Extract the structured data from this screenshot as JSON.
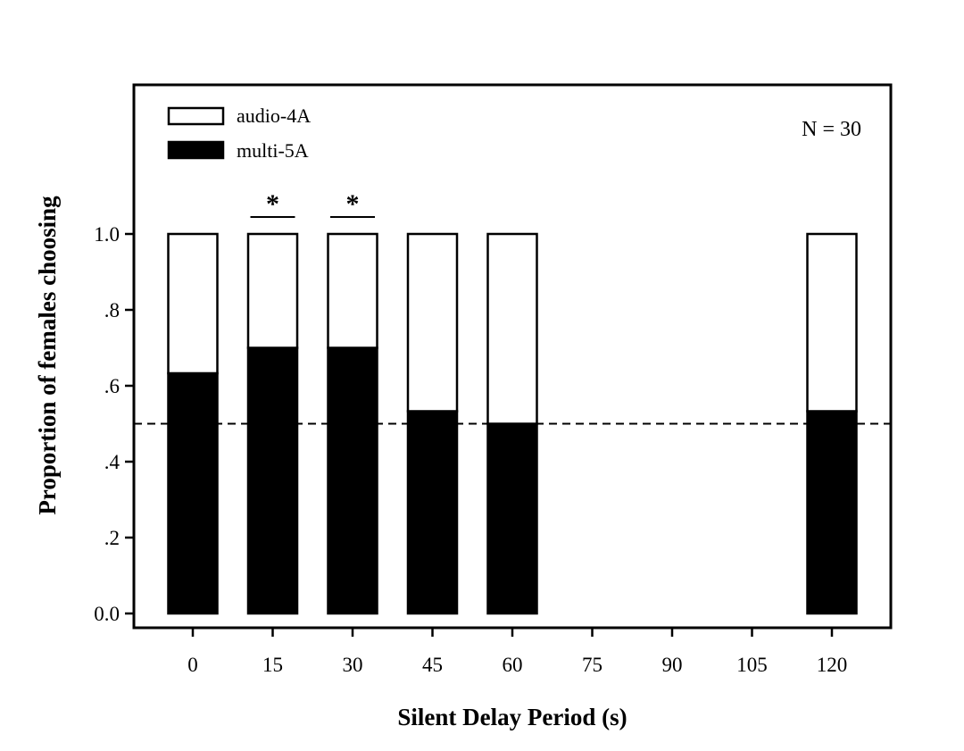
{
  "chart_data": {
    "type": "bar",
    "stacked": true,
    "title": "",
    "xlabel": "Silent Delay Period (s)",
    "ylabel": "Proportion of females choosing",
    "x_ticks": [
      "0",
      "15",
      "30",
      "45",
      "60",
      "75",
      "90",
      "105",
      "120"
    ],
    "y_ticks": [
      {
        "value": 0.0,
        "label": "0.0"
      },
      {
        "value": 0.2,
        "label": ".2"
      },
      {
        "value": 0.4,
        "label": ".4"
      },
      {
        "value": 0.6,
        "label": ".6"
      },
      {
        "value": 0.8,
        "label": ".8"
      },
      {
        "value": 1.0,
        "label": "1.0"
      }
    ],
    "ylim": [
      0,
      1.0
    ],
    "categories": [
      "0",
      "15",
      "30",
      "45",
      "60",
      "120"
    ],
    "series": [
      {
        "name": "multi-5A",
        "color": "#000000",
        "values": [
          0.633,
          0.7,
          0.7,
          0.533,
          0.5,
          0.533
        ]
      },
      {
        "name": "audio-4A",
        "color": "#ffffff",
        "values": [
          0.367,
          0.3,
          0.3,
          0.467,
          0.5,
          0.467
        ]
      }
    ],
    "reference_line": 0.5,
    "significance": [
      {
        "category": "15",
        "label": "*"
      },
      {
        "category": "30",
        "label": "*"
      }
    ],
    "annotation": "N = 30",
    "legend": {
      "position": "top-left",
      "entries": [
        "audio-4A",
        "multi-5A"
      ]
    },
    "grid": false
  }
}
